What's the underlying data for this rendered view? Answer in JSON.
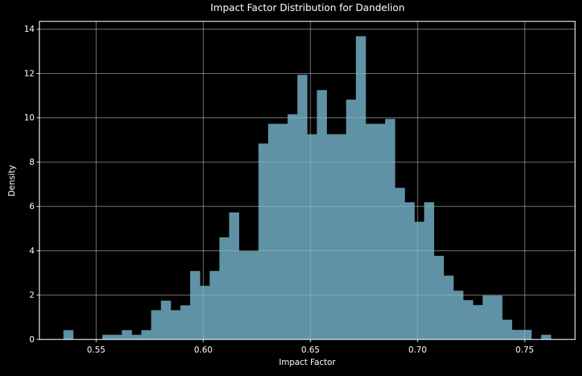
{
  "chart_data": {
    "type": "bar",
    "subtype": "histogram",
    "title": "Impact Factor Distribution for Dandelion",
    "xlabel": "Impact Factor",
    "ylabel": "Density",
    "xlim": [
      0.5235,
      0.7735
    ],
    "ylim": [
      0,
      14.35
    ],
    "xticks": [
      0.55,
      0.6,
      0.65,
      0.7,
      0.75
    ],
    "xtick_labels": [
      "0.55",
      "0.60",
      "0.65",
      "0.70",
      "0.75"
    ],
    "yticks": [
      0,
      2,
      4,
      6,
      8,
      10,
      12,
      14
    ],
    "ytick_labels": [
      "0",
      "2",
      "4",
      "6",
      "8",
      "10",
      "12",
      "14"
    ],
    "grid": true,
    "legend": null,
    "bin_start": 0.5347,
    "bin_width": 0.00455,
    "n_bins": 50,
    "values": [
      0.42,
      0,
      0,
      0,
      0.21,
      0.21,
      0.42,
      0.21,
      0.42,
      1.32,
      1.75,
      1.32,
      1.54,
      3.09,
      2.42,
      3.09,
      4.61,
      5.73,
      3.98,
      3.98,
      8.84,
      9.73,
      9.73,
      10.16,
      11.94,
      9.26,
      11.25,
      9.26,
      9.26,
      10.82,
      13.68,
      9.73,
      9.73,
      9.95,
      6.84,
      6.19,
      5.31,
      6.19,
      3.77,
      2.88,
      2.2,
      1.77,
      1.55,
      1.98,
      1.98,
      0.89,
      0.43,
      0.43,
      0,
      0.21
    ],
    "colors": {
      "bar": "#5f92a4",
      "background": "#000000",
      "grid": "#555555",
      "axis": "#ffffff",
      "text": "#ffffff"
    }
  }
}
